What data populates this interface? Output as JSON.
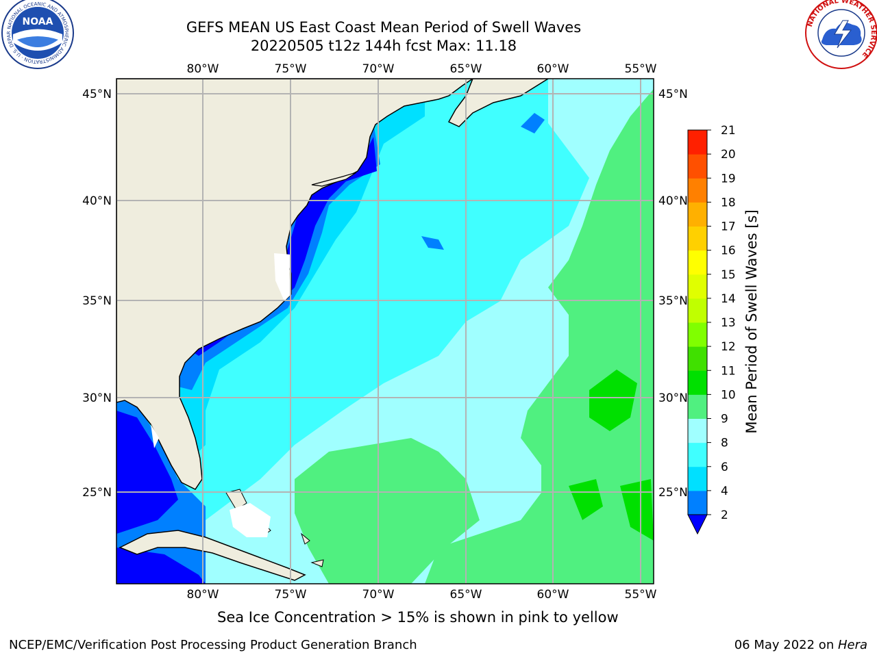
{
  "header": {
    "title_line1": "GEFS MEAN US East Coast Mean Period of Swell Waves",
    "title_line2": "20220505 t12z 144h fcst   Max: 11.18"
  },
  "logos": {
    "left": {
      "name": "NOAA",
      "ring_text": "NATIONAL OCEANIC AND ATMOSPHERIC ADMINISTRATION · U.S. DEPARTMENT OF COMMERCE",
      "center_text": "NOAA"
    },
    "right": {
      "name": "National Weather Service",
      "ring_text": "NATIONAL WEATHER SERVICE"
    }
  },
  "map": {
    "lon_range": [
      -85,
      -54
    ],
    "lat_range": [
      20.5,
      46
    ],
    "lon_ticks": [
      "80°W",
      "75°W",
      "70°W",
      "65°W",
      "60°W",
      "55°W"
    ],
    "lon_tick_values": [
      -80,
      -75,
      -70,
      -65,
      -60,
      -55
    ],
    "lat_ticks": [
      "45°N",
      "40°N",
      "35°N",
      "30°N",
      "25°N"
    ],
    "lat_tick_values": [
      45,
      40,
      35,
      30,
      25
    ],
    "colors": {
      "land": "#efedde",
      "grid": "#b3b3b3",
      "coast": "#000000",
      "ice_gap": "#ffffff"
    }
  },
  "colorbar": {
    "label": "Mean Period of Swell Waves [s]",
    "tick_labels": [
      "2",
      "4",
      "6",
      "8",
      "9",
      "10",
      "11",
      "12",
      "13",
      "14",
      "15",
      "16",
      "17",
      "18",
      "19",
      "20",
      "21"
    ],
    "levels": [
      2,
      4,
      6,
      8,
      9,
      10,
      11,
      12,
      13,
      14,
      15,
      16,
      17,
      18,
      19,
      20,
      21
    ],
    "colors": [
      "#0080ff",
      "#00e0ff",
      "#40ffff",
      "#a0ffff",
      "#50f080",
      "#00e000",
      "#40e000",
      "#80ff00",
      "#c0ff00",
      "#e0ff00",
      "#ffff00",
      "#ffd000",
      "#ffb000",
      "#ff8000",
      "#ff5000",
      "#ff2000"
    ],
    "under_color": "#0000ff"
  },
  "notes": {
    "ice": "Sea Ice Concentration > 15% is shown in pink to yellow"
  },
  "footer": {
    "left": "NCEP/EMC/Verification Post Processing Product Generation Branch",
    "right_prefix": "06 May 2022 on ",
    "right_machine": "Hera"
  }
}
